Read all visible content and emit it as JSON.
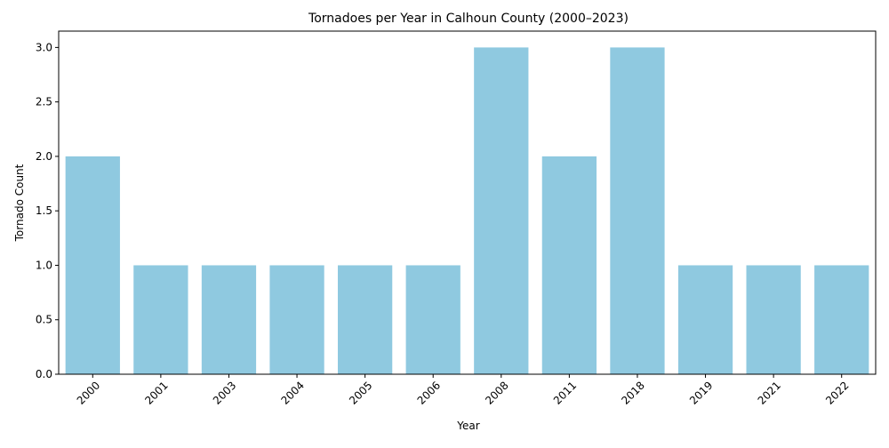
{
  "chart_data": {
    "type": "bar",
    "title": "Tornadoes per Year in Calhoun County (2000–2023)",
    "xlabel": "Year",
    "ylabel": "Tornado Count",
    "categories": [
      "2000",
      "2001",
      "2003",
      "2004",
      "2005",
      "2006",
      "2008",
      "2011",
      "2018",
      "2019",
      "2021",
      "2022"
    ],
    "values": [
      2,
      1,
      1,
      1,
      1,
      1,
      3,
      2,
      3,
      1,
      1,
      1
    ],
    "ylim": [
      0,
      3.15
    ],
    "yticks": [
      "0.0",
      "0.5",
      "1.0",
      "1.5",
      "2.0",
      "2.5",
      "3.0"
    ],
    "grid": false,
    "bar_color": "#8fc9e0"
  }
}
